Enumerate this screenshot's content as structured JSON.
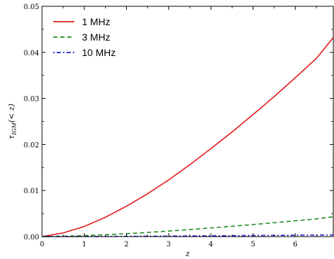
{
  "chart_data": {
    "type": "line",
    "xlabel": "z",
    "ylabel_main": "τ",
    "ylabel_sub": "IGM",
    "ylabel_tail": "(< z)",
    "xlim": [
      0,
      6.9
    ],
    "ylim": [
      0,
      0.05
    ],
    "xticks": [
      0,
      1,
      2,
      3,
      4,
      5,
      6
    ],
    "xtick_labels": [
      "0",
      "1",
      "2",
      "3",
      "4",
      "5",
      "6"
    ],
    "yticks": [
      0,
      0.01,
      0.02,
      0.03,
      0.04,
      0.05
    ],
    "ytick_labels": [
      "0.00",
      "0.01",
      "0.02",
      "0.03",
      "0.04",
      "0.05"
    ],
    "legend_position": "top-left",
    "series": [
      {
        "name": "1 MHz",
        "color": "#e41a1c",
        "style": "solid",
        "x": [
          0,
          0.5,
          1,
          1.5,
          2,
          2.5,
          3,
          3.5,
          4,
          4.5,
          5,
          5.5,
          6,
          6.5,
          6.9
        ],
        "y": [
          0,
          0.0008,
          0.0022,
          0.0042,
          0.0066,
          0.0093,
          0.0123,
          0.0156,
          0.0191,
          0.0227,
          0.0265,
          0.0304,
          0.0345,
          0.0387,
          0.0432
        ]
      },
      {
        "name": "3 MHz",
        "color": "#228b22",
        "style": "dashed",
        "x": [
          0,
          0.5,
          1,
          1.5,
          2,
          2.5,
          3,
          3.5,
          4,
          4.5,
          5,
          5.5,
          6,
          6.5,
          6.9
        ],
        "y": [
          0,
          8e-05,
          0.00022,
          0.0004,
          0.00063,
          0.0009,
          0.0012,
          0.00153,
          0.00188,
          0.00224,
          0.00262,
          0.00302,
          0.00343,
          0.00385,
          0.0043
        ]
      },
      {
        "name": "10 MHz",
        "color": "#1f1fd0",
        "style": "dashdot",
        "x": [
          0,
          1,
          2,
          3,
          4,
          5,
          6,
          6.9
        ],
        "y": [
          0,
          2e-05,
          6e-05,
          0.00011,
          0.00017,
          0.00023,
          0.0003,
          0.00036
        ]
      }
    ]
  }
}
